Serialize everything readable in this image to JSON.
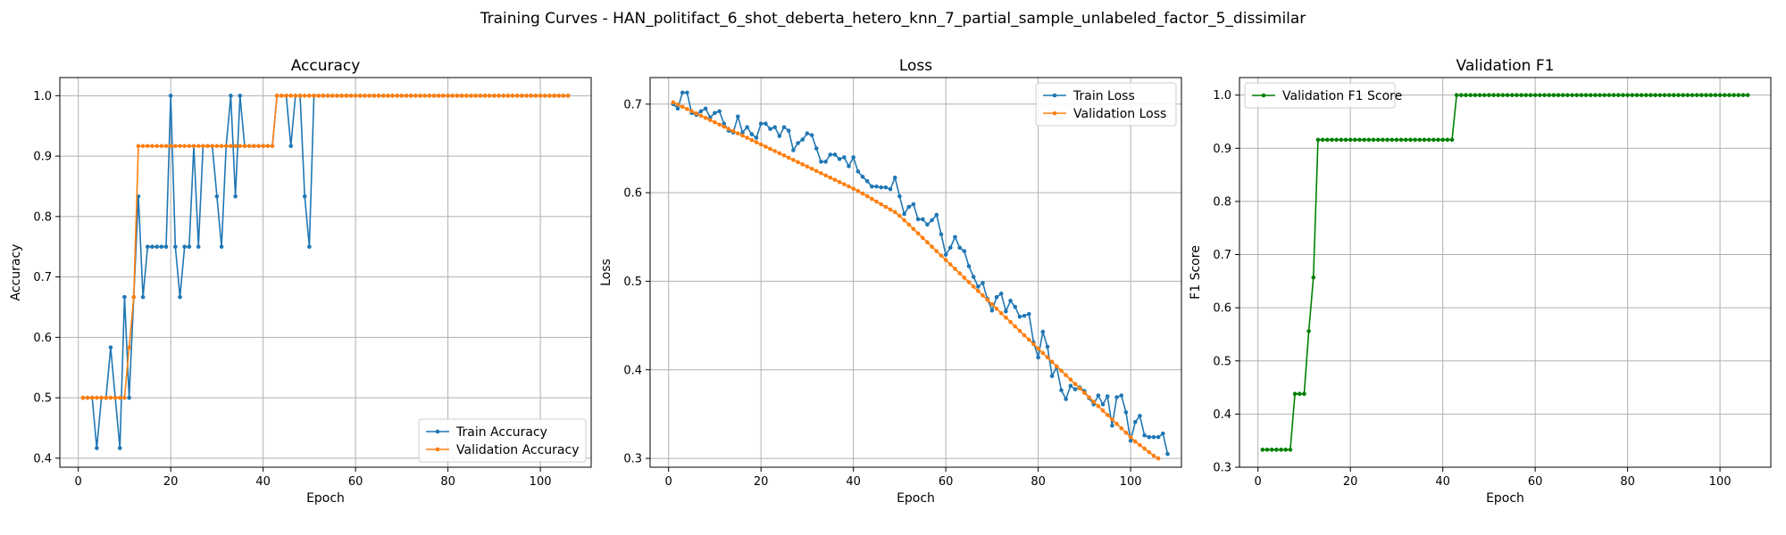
{
  "suptitle": "Training Curves - HAN_politifact_6_shot_deberta_hetero_knn_7_partial_sample_unlabeled_factor_5_dissimilar",
  "chart_data": [
    {
      "type": "line",
      "title": "Accuracy",
      "xlabel": "Epoch",
      "ylabel": "Accuracy",
      "xlim": [
        -4,
        111
      ],
      "ylim": [
        0.385,
        1.03
      ],
      "xticks": [
        0,
        20,
        40,
        60,
        80,
        100
      ],
      "yticks": [
        0.4,
        0.5,
        0.6,
        0.7,
        0.8,
        0.9,
        1.0
      ],
      "ytick_labels": [
        "0.4",
        "0.5",
        "0.6",
        "0.7",
        "0.8",
        "0.9",
        "1.0"
      ],
      "grid": true,
      "legend_loc": "lower-right",
      "series": [
        {
          "name": "Train Accuracy",
          "color": "#1f77b4",
          "x_start": 1,
          "values": [
            0.5,
            0.5,
            0.5,
            0.4167,
            0.5,
            0.5,
            0.5833,
            0.5,
            0.4167,
            0.6667,
            0.5,
            0.6667,
            0.8333,
            0.6667,
            0.75,
            0.75,
            0.75,
            0.75,
            0.75,
            1.0,
            0.75,
            0.6667,
            0.75,
            0.75,
            0.9167,
            0.75,
            0.9167,
            0.9167,
            0.9167,
            0.8333,
            0.75,
            0.9167,
            1.0,
            0.8333,
            1.0,
            0.9167,
            0.9167,
            0.9167,
            0.9167,
            0.9167,
            0.9167,
            0.9167,
            1.0,
            1.0,
            1.0,
            0.9167,
            1.0,
            1.0,
            0.8333,
            0.75,
            1.0,
            1.0,
            1.0,
            1.0,
            1.0,
            1.0,
            1.0,
            1.0,
            1.0,
            1.0,
            1.0,
            1.0,
            1.0,
            1.0,
            1.0,
            1.0,
            1.0,
            1.0,
            1.0,
            1.0,
            1.0,
            1.0,
            1.0,
            1.0,
            1.0,
            1.0,
            1.0,
            1.0,
            1.0,
            1.0,
            1.0,
            1.0,
            1.0,
            1.0,
            1.0,
            1.0,
            1.0,
            1.0,
            1.0,
            1.0,
            1.0,
            1.0,
            1.0,
            1.0,
            1.0,
            1.0,
            1.0,
            1.0,
            1.0,
            1.0,
            1.0,
            1.0,
            1.0,
            1.0,
            1.0,
            1.0
          ]
        },
        {
          "name": "Validation Accuracy",
          "color": "#ff7f0e",
          "x_start": 1,
          "values": [
            0.5,
            0.5,
            0.5,
            0.5,
            0.5,
            0.5,
            0.5,
            0.5,
            0.5,
            0.5,
            0.5833,
            0.6667,
            0.9167,
            0.9167,
            0.9167,
            0.9167,
            0.9167,
            0.9167,
            0.9167,
            0.9167,
            0.9167,
            0.9167,
            0.9167,
            0.9167,
            0.9167,
            0.9167,
            0.9167,
            0.9167,
            0.9167,
            0.9167,
            0.9167,
            0.9167,
            0.9167,
            0.9167,
            0.9167,
            0.9167,
            0.9167,
            0.9167,
            0.9167,
            0.9167,
            0.9167,
            0.9167,
            1.0,
            1.0,
            1.0,
            1.0,
            1.0,
            1.0,
            1.0,
            1.0,
            1.0,
            1.0,
            1.0,
            1.0,
            1.0,
            1.0,
            1.0,
            1.0,
            1.0,
            1.0,
            1.0,
            1.0,
            1.0,
            1.0,
            1.0,
            1.0,
            1.0,
            1.0,
            1.0,
            1.0,
            1.0,
            1.0,
            1.0,
            1.0,
            1.0,
            1.0,
            1.0,
            1.0,
            1.0,
            1.0,
            1.0,
            1.0,
            1.0,
            1.0,
            1.0,
            1.0,
            1.0,
            1.0,
            1.0,
            1.0,
            1.0,
            1.0,
            1.0,
            1.0,
            1.0,
            1.0,
            1.0,
            1.0,
            1.0,
            1.0,
            1.0,
            1.0,
            1.0,
            1.0,
            1.0,
            1.0
          ]
        }
      ]
    },
    {
      "type": "line",
      "title": "Loss",
      "xlabel": "Epoch",
      "ylabel": "Loss",
      "xlim": [
        -4,
        111
      ],
      "ylim": [
        0.29,
        0.73
      ],
      "xticks": [
        0,
        20,
        40,
        60,
        80,
        100
      ],
      "yticks": [
        0.3,
        0.4,
        0.5,
        0.6,
        0.7
      ],
      "ytick_labels": [
        "0.3",
        "0.4",
        "0.5",
        "0.6",
        "0.7"
      ],
      "grid": true,
      "legend_loc": "top-right",
      "series": [
        {
          "name": "Train Loss",
          "color": "#1f77b4",
          "x_start": 1,
          "values": [
            0.7,
            0.695,
            0.713,
            0.713,
            0.69,
            0.688,
            0.692,
            0.695,
            0.685,
            0.69,
            0.692,
            0.678,
            0.67,
            0.668,
            0.686,
            0.668,
            0.674,
            0.666,
            0.662,
            0.678,
            0.678,
            0.672,
            0.674,
            0.664,
            0.674,
            0.67,
            0.648,
            0.656,
            0.66,
            0.667,
            0.665,
            0.65,
            0.635,
            0.635,
            0.643,
            0.643,
            0.638,
            0.64,
            0.63,
            0.64,
            0.624,
            0.618,
            0.613,
            0.607,
            0.607,
            0.606,
            0.606,
            0.604,
            0.617,
            0.596,
            0.576,
            0.584,
            0.587,
            0.57,
            0.57,
            0.564,
            0.569,
            0.575,
            0.553,
            0.53,
            0.538,
            0.55,
            0.538,
            0.534,
            0.517,
            0.505,
            0.494,
            0.498,
            0.48,
            0.467,
            0.482,
            0.486,
            0.466,
            0.478,
            0.471,
            0.46,
            0.461,
            0.463,
            0.431,
            0.414,
            0.443,
            0.426,
            0.393,
            0.403,
            0.377,
            0.367,
            0.382,
            0.378,
            0.38,
            0.376,
            0.368,
            0.361,
            0.371,
            0.361,
            0.37,
            0.337,
            0.369,
            0.371,
            0.352,
            0.32,
            0.341,
            0.348,
            0.326,
            0.324,
            0.324,
            0.324,
            0.328,
            0.305
          ]
        },
        {
          "name": "Validation Loss",
          "color": "#ff7f0e",
          "x_start": 1,
          "values": [
            0.702,
            0.6995,
            0.697,
            0.6945,
            0.692,
            0.6895,
            0.687,
            0.6845,
            0.682,
            0.6795,
            0.677,
            0.6745,
            0.672,
            0.6695,
            0.667,
            0.6645,
            0.662,
            0.6595,
            0.657,
            0.6545,
            0.652,
            0.6495,
            0.647,
            0.6445,
            0.642,
            0.6395,
            0.637,
            0.6345,
            0.632,
            0.6295,
            0.627,
            0.6245,
            0.622,
            0.6195,
            0.617,
            0.6145,
            0.612,
            0.6095,
            0.607,
            0.6045,
            0.602,
            0.599,
            0.596,
            0.593,
            0.59,
            0.587,
            0.584,
            0.581,
            0.578,
            0.574,
            0.569,
            0.564,
            0.559,
            0.554,
            0.549,
            0.544,
            0.539,
            0.534,
            0.529,
            0.524,
            0.519,
            0.514,
            0.509,
            0.504,
            0.499,
            0.494,
            0.489,
            0.484,
            0.479,
            0.474,
            0.469,
            0.464,
            0.459,
            0.454,
            0.449,
            0.444,
            0.439,
            0.434,
            0.429,
            0.424,
            0.419,
            0.414,
            0.409,
            0.404,
            0.399,
            0.394,
            0.389,
            0.384,
            0.379,
            0.374,
            0.369,
            0.364,
            0.359,
            0.354,
            0.349,
            0.344,
            0.339,
            0.334,
            0.329,
            0.324,
            0.319,
            0.315,
            0.311,
            0.307,
            0.303,
            0.3
          ]
        }
      ]
    },
    {
      "type": "line",
      "title": "Validation F1",
      "xlabel": "Epoch",
      "ylabel": "F1 Score",
      "xlim": [
        -4,
        111
      ],
      "ylim": [
        0.3,
        1.033
      ],
      "xticks": [
        0,
        20,
        40,
        60,
        80,
        100
      ],
      "yticks": [
        0.3,
        0.4,
        0.5,
        0.6,
        0.7,
        0.8,
        0.9,
        1.0
      ],
      "ytick_labels": [
        "0.3",
        "0.4",
        "0.5",
        "0.6",
        "0.7",
        "0.8",
        "0.9",
        "1.0"
      ],
      "grid": true,
      "legend_loc": "top-left",
      "series": [
        {
          "name": "Validation F1 Score",
          "color": "#008000",
          "x_start": 1,
          "values": [
            0.333,
            0.333,
            0.333,
            0.333,
            0.333,
            0.333,
            0.333,
            0.438,
            0.438,
            0.438,
            0.556,
            0.657,
            0.916,
            0.916,
            0.916,
            0.916,
            0.916,
            0.916,
            0.916,
            0.916,
            0.916,
            0.916,
            0.916,
            0.916,
            0.916,
            0.916,
            0.916,
            0.916,
            0.916,
            0.916,
            0.916,
            0.916,
            0.916,
            0.916,
            0.916,
            0.916,
            0.916,
            0.916,
            0.916,
            0.916,
            0.916,
            0.916,
            1.0,
            1.0,
            1.0,
            1.0,
            1.0,
            1.0,
            1.0,
            1.0,
            1.0,
            1.0,
            1.0,
            1.0,
            1.0,
            1.0,
            1.0,
            1.0,
            1.0,
            1.0,
            1.0,
            1.0,
            1.0,
            1.0,
            1.0,
            1.0,
            1.0,
            1.0,
            1.0,
            1.0,
            1.0,
            1.0,
            1.0,
            1.0,
            1.0,
            1.0,
            1.0,
            1.0,
            1.0,
            1.0,
            1.0,
            1.0,
            1.0,
            1.0,
            1.0,
            1.0,
            1.0,
            1.0,
            1.0,
            1.0,
            1.0,
            1.0,
            1.0,
            1.0,
            1.0,
            1.0,
            1.0,
            1.0,
            1.0,
            1.0,
            1.0,
            1.0,
            1.0,
            1.0,
            1.0,
            1.0
          ]
        }
      ]
    }
  ]
}
